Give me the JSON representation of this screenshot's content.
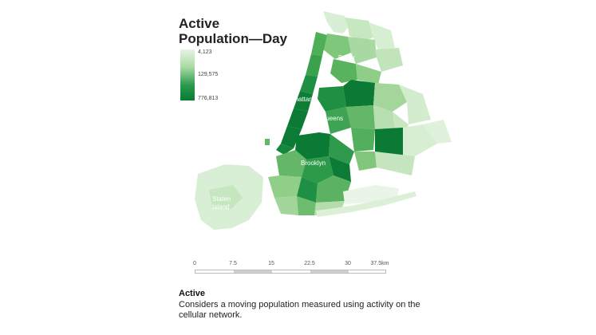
{
  "title": {
    "line1": "Active",
    "line2": "Population—Day"
  },
  "legend": {
    "min_label": "4,123",
    "mid_label": "129,575",
    "max_label": "776,813",
    "colors": [
      "#e6f4e3",
      "#a8d9a0",
      "#2a9a4e",
      "#0a7a34"
    ]
  },
  "boroughs": {
    "bronx": "Bronx",
    "manhattan": "Manhattan",
    "queens": "Queens",
    "brooklyn": "Brooklyn",
    "staten_island_line1": "Staten",
    "staten_island_line2": "Island"
  },
  "scale": {
    "ticks": [
      "0",
      "7.5",
      "15",
      "22.5",
      "30",
      "37.5km"
    ]
  },
  "caption": {
    "title": "Active",
    "body": "Considers a moving population measured using activity on the cellular network."
  }
}
